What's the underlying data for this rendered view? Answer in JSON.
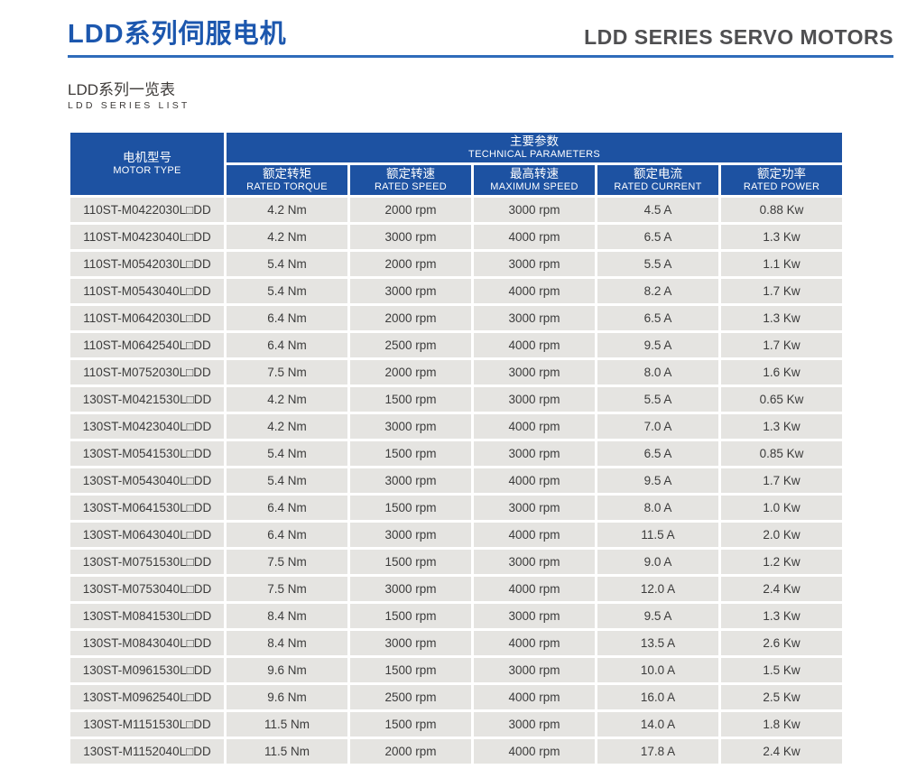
{
  "page": {
    "title_zh": "LDD系列伺服电机",
    "title_en": "LDD SERIES SERVO MOTORS",
    "subtitle_zh": "LDD系列一览表",
    "subtitle_en": "LDD SERIES LIST"
  },
  "colors": {
    "title_blue": "#1c57ae",
    "title_gray": "#4f4f51",
    "rule_blue": "#2f6cba",
    "table_header_blue": "#1d52a2",
    "row_background": "#e5e4e1",
    "cell_text": "#3b3b3b"
  },
  "table": {
    "motor_type_header": {
      "zh": "电机型号",
      "en": "MOTOR TYPE"
    },
    "group_header": {
      "zh": "主要参数",
      "en": "TECHNICAL PARAMETERS"
    },
    "columns": [
      {
        "zh": "额定转矩",
        "en": "RATED TORQUE"
      },
      {
        "zh": "额定转速",
        "en": "RATED SPEED"
      },
      {
        "zh": "最高转速",
        "en": "MAXIMUM SPEED"
      },
      {
        "zh": "额定电流",
        "en": "RATED CURRENT"
      },
      {
        "zh": "额定功率",
        "en": "RATED POWER"
      }
    ],
    "rows": [
      [
        "110ST-M0422030L□DD",
        "4.2 Nm",
        "2000 rpm",
        "3000 rpm",
        "4.5 A",
        "0.88 Kw"
      ],
      [
        "110ST-M0423040L□DD",
        "4.2 Nm",
        "3000 rpm",
        "4000 rpm",
        "6.5 A",
        "1.3 Kw"
      ],
      [
        "110ST-M0542030L□DD",
        "5.4 Nm",
        "2000 rpm",
        "3000 rpm",
        "5.5 A",
        "1.1 Kw"
      ],
      [
        "110ST-M0543040L□DD",
        "5.4 Nm",
        "3000 rpm",
        "4000 rpm",
        "8.2 A",
        "1.7 Kw"
      ],
      [
        "110ST-M0642030L□DD",
        "6.4 Nm",
        "2000 rpm",
        "3000 rpm",
        "6.5 A",
        "1.3 Kw"
      ],
      [
        "110ST-M0642540L□DD",
        "6.4 Nm",
        "2500 rpm",
        "4000 rpm",
        "9.5 A",
        "1.7 Kw"
      ],
      [
        "110ST-M0752030L□DD",
        "7.5 Nm",
        "2000 rpm",
        "3000 rpm",
        "8.0 A",
        "1.6 Kw"
      ],
      [
        "130ST-M0421530L□DD",
        "4.2 Nm",
        "1500 rpm",
        "3000 rpm",
        "5.5 A",
        "0.65 Kw"
      ],
      [
        "130ST-M0423040L□DD",
        "4.2 Nm",
        "3000 rpm",
        "4000 rpm",
        "7.0 A",
        "1.3 Kw"
      ],
      [
        "130ST-M0541530L□DD",
        "5.4 Nm",
        "1500 rpm",
        "3000 rpm",
        "6.5 A",
        "0.85 Kw"
      ],
      [
        "130ST-M0543040L□DD",
        "5.4 Nm",
        "3000 rpm",
        "4000 rpm",
        "9.5 A",
        "1.7 Kw"
      ],
      [
        "130ST-M0641530L□DD",
        "6.4 Nm",
        "1500 rpm",
        "3000 rpm",
        "8.0 A",
        "1.0 Kw"
      ],
      [
        "130ST-M0643040L□DD",
        "6.4 Nm",
        "3000 rpm",
        "4000 rpm",
        "11.5 A",
        "2.0 Kw"
      ],
      [
        "130ST-M0751530L□DD",
        "7.5 Nm",
        "1500 rpm",
        "3000 rpm",
        "9.0 A",
        "1.2 Kw"
      ],
      [
        "130ST-M0753040L□DD",
        "7.5 Nm",
        "3000 rpm",
        "4000 rpm",
        "12.0 A",
        "2.4 Kw"
      ],
      [
        "130ST-M0841530L□DD",
        "8.4 Nm",
        "1500 rpm",
        "3000 rpm",
        "9.5 A",
        "1.3 Kw"
      ],
      [
        "130ST-M0843040L□DD",
        "8.4 Nm",
        "3000 rpm",
        "4000 rpm",
        "13.5 A",
        "2.6 Kw"
      ],
      [
        "130ST-M0961530L□DD",
        "9.6 Nm",
        "1500 rpm",
        "3000 rpm",
        "10.0 A",
        "1.5 Kw"
      ],
      [
        "130ST-M0962540L□DD",
        "9.6 Nm",
        "2500 rpm",
        "4000 rpm",
        "16.0 A",
        "2.5 Kw"
      ],
      [
        "130ST-M1151530L□DD",
        "11.5 Nm",
        "1500 rpm",
        "3000 rpm",
        "14.0 A",
        "1.8 Kw"
      ],
      [
        "130ST-M1152040L□DD",
        "11.5 Nm",
        "2000 rpm",
        "4000 rpm",
        "17.8 A",
        "2.4 Kw"
      ]
    ]
  }
}
